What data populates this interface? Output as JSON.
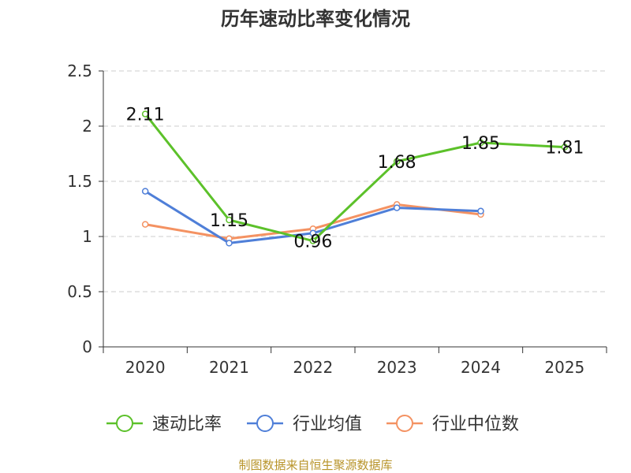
{
  "chart_data": {
    "type": "line",
    "title": "历年速动比率变化情况",
    "categories": [
      "2020",
      "2021",
      "2022",
      "2023",
      "2024",
      "2025"
    ],
    "ylim": [
      0,
      2.5
    ],
    "yticks": [
      "0",
      "0.5",
      "1",
      "1.5",
      "2",
      "2.5"
    ],
    "grid": true,
    "legend_position": "bottom",
    "series": [
      {
        "name": "速动比率",
        "color": "#5cc12a",
        "values": [
          2.11,
          1.15,
          0.96,
          1.68,
          1.85,
          1.81
        ],
        "labels": [
          "2.11",
          "1.15",
          "0.96",
          "1.68",
          "1.85",
          "1.81"
        ]
      },
      {
        "name": "行业均值",
        "color": "#4f7fd8",
        "values": [
          1.41,
          0.94,
          1.03,
          1.26,
          1.23,
          null
        ]
      },
      {
        "name": "行业中位数",
        "color": "#f49262",
        "values": [
          1.11,
          0.98,
          1.07,
          1.29,
          1.2,
          null
        ]
      }
    ],
    "source": "制图数据来自恒生聚源数据库"
  }
}
